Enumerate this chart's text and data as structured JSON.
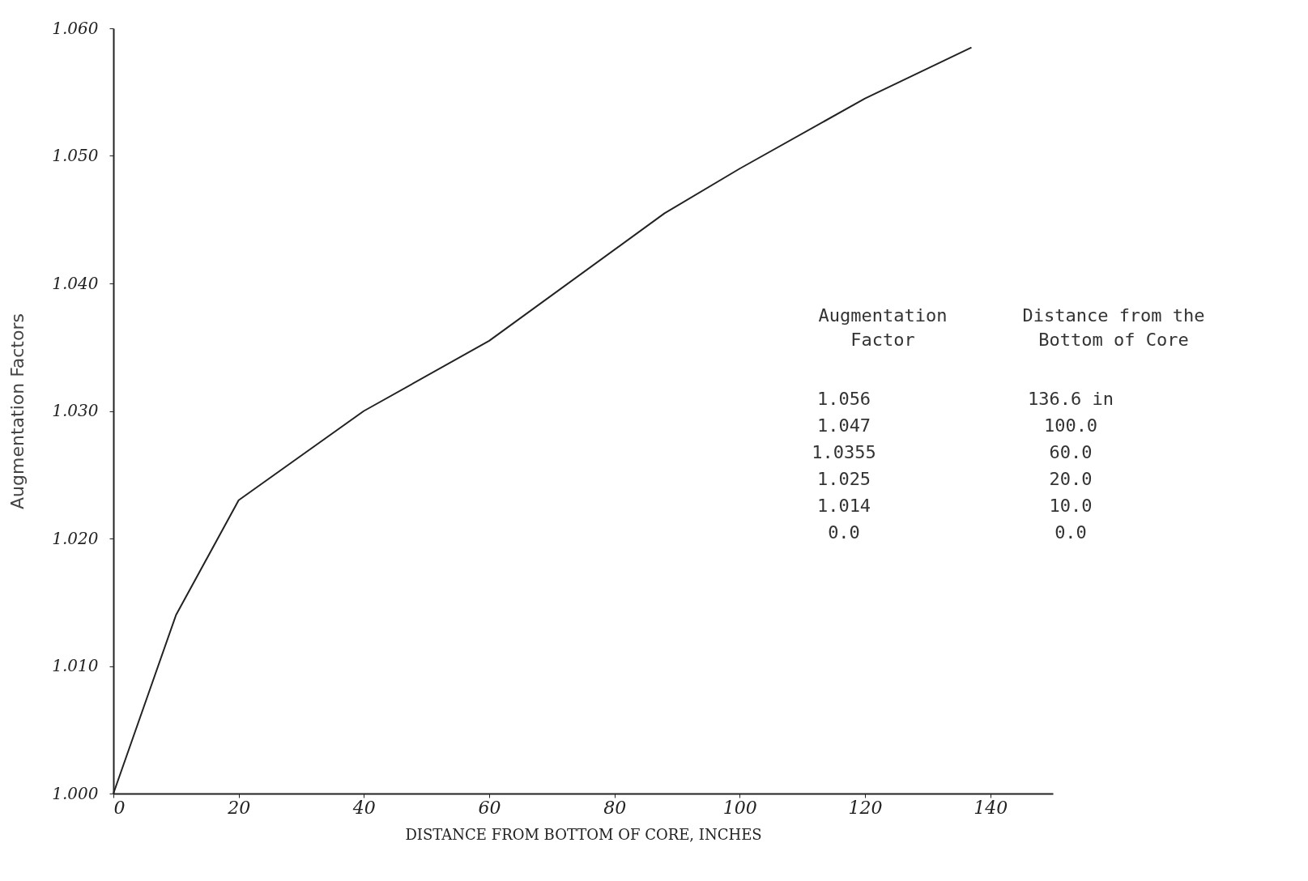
{
  "chart_data": {
    "type": "line",
    "xlabel": "DISTANCE FROM BOTTOM OF CORE, INCHES",
    "ylabel": "Augmentation Factors",
    "x": [
      0,
      5,
      10,
      20,
      40,
      60,
      88,
      100,
      120,
      137
    ],
    "series": [
      {
        "color": "#222222",
        "values": [
          1.0,
          1.007,
          1.014,
          1.023,
          1.03,
          1.0355,
          1.0455,
          1.049,
          1.0545,
          1.0585
        ]
      }
    ],
    "xlim": [
      0,
      150
    ],
    "xticks": [
      0,
      20,
      40,
      60,
      80,
      100,
      120,
      140
    ],
    "ylim": [
      1.0,
      1.06
    ],
    "yticks": [
      {
        "value": 1.0,
        "label": "1.000"
      },
      {
        "value": 1.01,
        "label": "1.010"
      },
      {
        "value": 1.02,
        "label": "1.020"
      },
      {
        "value": 1.03,
        "label": "1.030"
      },
      {
        "value": 1.04,
        "label": "1.040"
      },
      {
        "value": 1.05,
        "label": "1.050"
      },
      {
        "value": 1.06,
        "label": "1.060"
      }
    ],
    "grid": false,
    "marker": "none",
    "line_style": "solid",
    "annotations": [
      "Augmentation Factor",
      "Distance from the Bottom of Core",
      "1.056",
      "136.6 in",
      "1.047",
      "100.0",
      "1.0355",
      "60.0",
      "1.025",
      "20.0",
      "1.014",
      "10.0",
      "0.0",
      "0.0"
    ]
  }
}
